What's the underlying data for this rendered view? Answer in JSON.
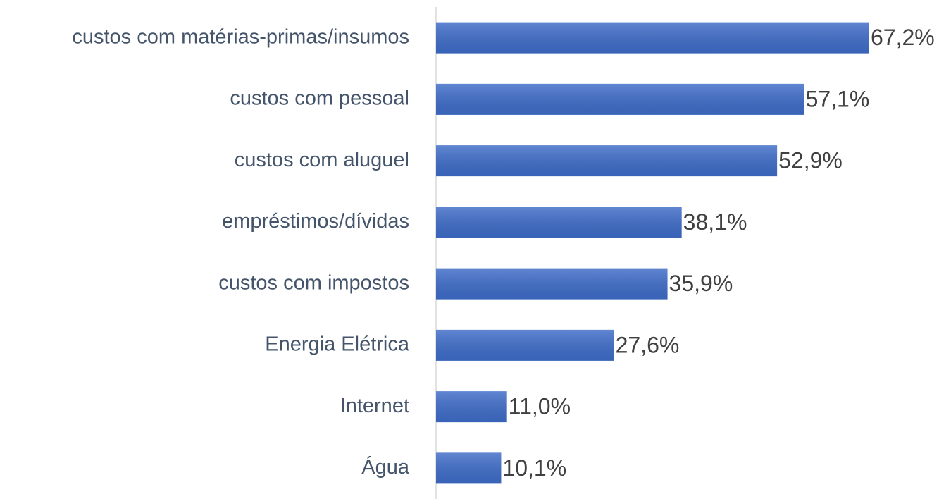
{
  "chart_data": {
    "type": "bar",
    "orientation": "horizontal",
    "categories": [
      "custos com matérias-primas/insumos",
      "custos com pessoal",
      "custos com aluguel",
      "empréstimos/dívidas",
      "custos com impostos",
      "Energia Elétrica",
      "Internet",
      "Água"
    ],
    "values": [
      67.2,
      57.1,
      52.9,
      38.1,
      35.9,
      27.6,
      11.0,
      10.1
    ],
    "value_labels": [
      "67,2%",
      "57,1%",
      "52,9%",
      "38,1%",
      "35,9%",
      "27,6%",
      "11,0%",
      "10,1%"
    ],
    "color": "#3e6cc8"
  }
}
